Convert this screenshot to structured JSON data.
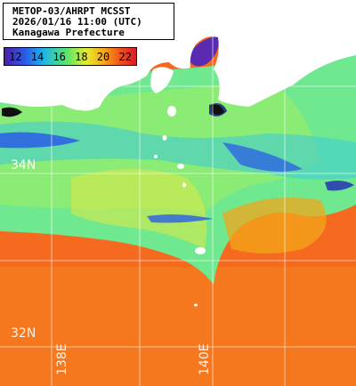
{
  "title": {
    "line1": "METOP-03/AHRPT MCSST",
    "line2": "2026/01/16 11:00 (UTC)",
    "line3": "Kanagawa Prefecture"
  },
  "legend": {
    "ticks": [
      "12",
      "14",
      "16",
      "18",
      "20",
      "22"
    ],
    "colors": [
      "#4a1fa8",
      "#2a5de6",
      "#1fb6e8",
      "#5ee66a",
      "#e6ec30",
      "#f5a31a",
      "#f0501a",
      "#d91a2a"
    ]
  },
  "grid": {
    "lat_labels": [
      "34N",
      "32N"
    ],
    "lon_labels": [
      "138E",
      "140E"
    ]
  },
  "colors": {
    "land": "#ffffff",
    "cold": "#2a5de6",
    "mid": "#7fe8a0",
    "warm": "#f56a1f",
    "grid": "#ffffff"
  }
}
